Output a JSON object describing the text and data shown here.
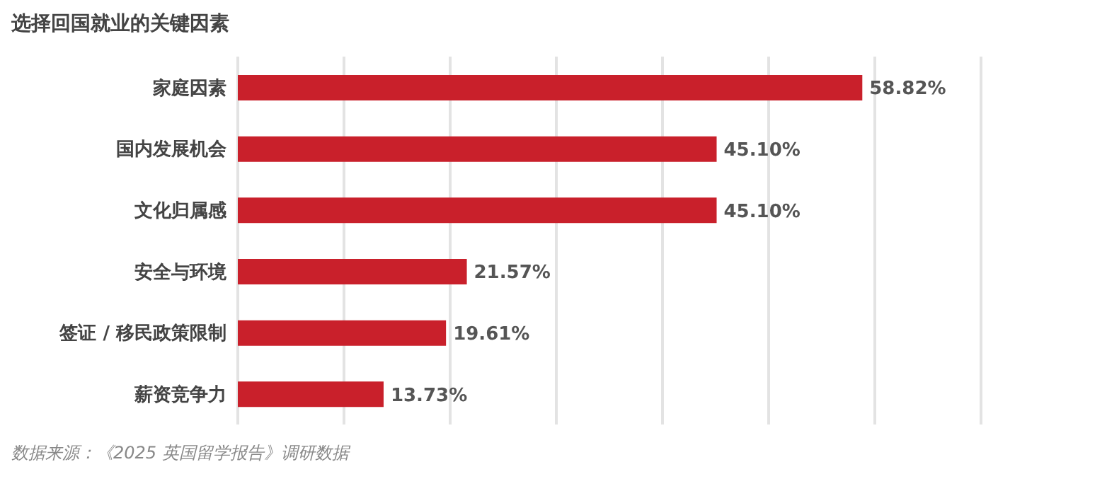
{
  "chart_data": {
    "type": "bar",
    "orientation": "horizontal",
    "title": "选择回国就业的关键因素",
    "categories": [
      "家庭因素",
      "国内发展机会",
      "文化归属感",
      "安全与环境",
      "签证 / 移民政策限制",
      "薪资竞争力"
    ],
    "values": [
      58.82,
      45.1,
      45.1,
      21.57,
      19.61,
      13.73
    ],
    "value_labels": [
      "58.82%",
      "45.10%",
      "45.10%",
      "21.57%",
      "19.61%",
      "13.73%"
    ],
    "color": "#c9202b",
    "xlim": [
      0,
      70
    ],
    "tick_labels": "y",
    "grid": "x",
    "annotations": [
      "数据来源：《2025 英国留学报告》调研数据"
    ]
  }
}
